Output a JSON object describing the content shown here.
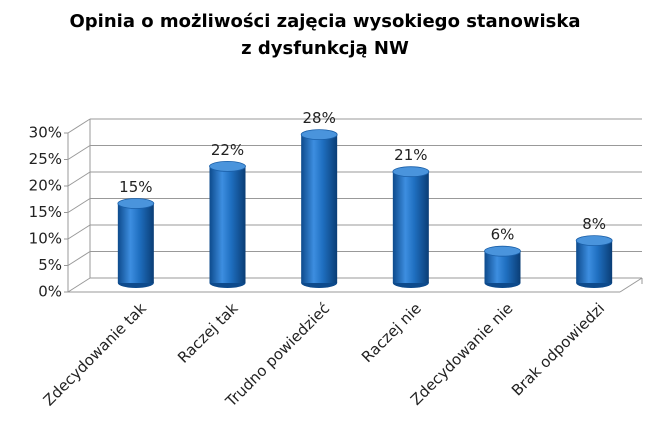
{
  "chart_data": {
    "type": "bar3d",
    "title": "Opinia o możliwości zajęcia wysokiego stanowiska\nz dysfunkcją NW",
    "categories": [
      "Zdecydowanie tak",
      "Raczej tak",
      "Trudno powiedzieć",
      "Raczej nie",
      "Zdecydowanie nie",
      "Brak odpowiedzi"
    ],
    "values": [
      15,
      22,
      28,
      21,
      6,
      8
    ],
    "value_labels": [
      "15%",
      "22%",
      "28%",
      "21%",
      "6%",
      "8%"
    ],
    "color": "#1f6fc0",
    "ylim": [
      0,
      30
    ],
    "yticks": [
      {
        "value": 0,
        "label": "0%"
      },
      {
        "value": 5,
        "label": "5%"
      },
      {
        "value": 10,
        "label": "10%"
      },
      {
        "value": 15,
        "label": "15%"
      },
      {
        "value": 20,
        "label": "20%"
      },
      {
        "value": 25,
        "label": "25%"
      },
      {
        "value": 30,
        "label": "30%"
      }
    ],
    "grid": true
  }
}
